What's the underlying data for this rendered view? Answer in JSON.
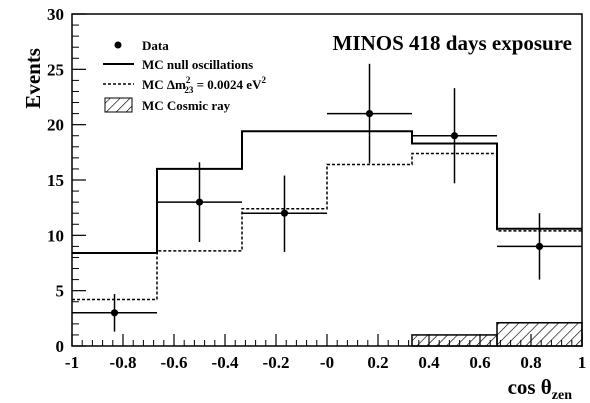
{
  "chart_data": {
    "type": "histogram",
    "title": "MINOS 418 days exposure",
    "xlabel": "cos θ",
    "xlabel_sub": "zen",
    "ylabel": "Events",
    "xlim": [
      -1,
      1
    ],
    "ylim": [
      0,
      30
    ],
    "grid": false,
    "legend_position": "top-left",
    "bin_edges": [
      -1,
      -0.6667,
      -0.3333,
      0,
      0.3333,
      0.6667,
      1
    ],
    "x_ticks": [
      {
        "value": -1,
        "label": "-1"
      },
      {
        "value": -0.8,
        "label": "-0.8"
      },
      {
        "value": -0.6,
        "label": "-0.6"
      },
      {
        "value": -0.4,
        "label": "-0.4"
      },
      {
        "value": -0.2,
        "label": "-0.2"
      },
      {
        "value": 0,
        "label": "-0"
      },
      {
        "value": 0.2,
        "label": "0.2"
      },
      {
        "value": 0.4,
        "label": "0.4"
      },
      {
        "value": 0.6,
        "label": "0.6"
      },
      {
        "value": 0.8,
        "label": "0.8"
      },
      {
        "value": 1,
        "label": "1"
      }
    ],
    "y_ticks": [
      {
        "value": 0,
        "label": "0"
      },
      {
        "value": 5,
        "label": "5"
      },
      {
        "value": 10,
        "label": "10"
      },
      {
        "value": 15,
        "label": "15"
      },
      {
        "value": 20,
        "label": "20"
      },
      {
        "value": 25,
        "label": "25"
      },
      {
        "value": 30,
        "label": "30"
      }
    ],
    "data": {
      "legend": "Data",
      "points": [
        {
          "x": -0.8333,
          "y": 3,
          "err_low": 1.7,
          "err_high": 1.7
        },
        {
          "x": -0.5,
          "y": 13,
          "err_low": 3.6,
          "err_high": 3.6
        },
        {
          "x": -0.1667,
          "y": 12,
          "err_low": 3.5,
          "err_high": 3.4
        },
        {
          "x": 0.1667,
          "y": 21,
          "err_low": 4.5,
          "err_high": 4.5
        },
        {
          "x": 0.5,
          "y": 19,
          "err_low": 4.3,
          "err_high": 4.3
        },
        {
          "x": 0.8333,
          "y": 9,
          "err_low": 3.0,
          "err_high": 3.0
        }
      ]
    },
    "series": [
      {
        "legend": "MC null oscillations",
        "style": "solid",
        "values": [
          8.4,
          16.0,
          19.4,
          19.4,
          18.3,
          10.6
        ]
      },
      {
        "legend_prefix": "MC Δm",
        "legend_sub": "23",
        "legend_sup": "2",
        "legend_mid": " = 0.0024 eV",
        "legend_sup2": "2",
        "style": "dashed",
        "values": [
          4.2,
          8.6,
          12.4,
          16.4,
          17.4,
          10.4
        ]
      }
    ],
    "cosmic": {
      "legend": "MC Cosmic ray",
      "style": "hatched",
      "values": [
        0,
        0,
        0,
        0,
        1.0,
        2.1
      ]
    }
  }
}
